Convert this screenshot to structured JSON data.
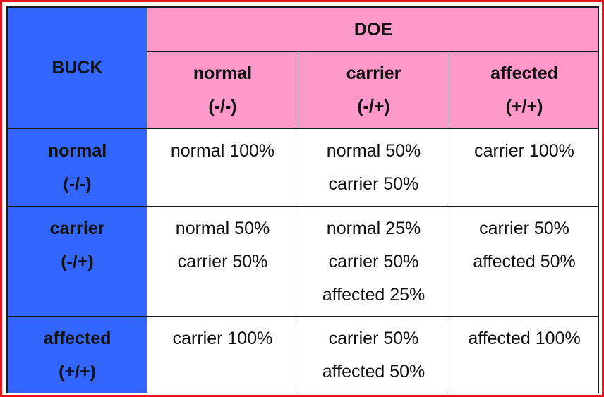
{
  "table": {
    "row_header_title": "BUCK",
    "column_header_title": "DOE",
    "columns": [
      {
        "name": "normal",
        "genotype": "(-/-)"
      },
      {
        "name": "carrier",
        "genotype": "(-/+)"
      },
      {
        "name": "affected",
        "genotype": "(+/+)"
      }
    ],
    "rows": [
      {
        "name": "normal",
        "genotype": "(-/-)",
        "cells": [
          [
            "normal 100%"
          ],
          [
            "normal 50%",
            "carrier 50%"
          ],
          [
            "carrier 100%"
          ]
        ]
      },
      {
        "name": "carrier",
        "genotype": "(-/+)",
        "cells": [
          [
            "normal 50%",
            "carrier 50%"
          ],
          [
            "normal 25%",
            "carrier 50%",
            "affected 25%"
          ],
          [
            "carrier 50%",
            "affected 50%"
          ]
        ]
      },
      {
        "name": "affected",
        "genotype": "(+/+)",
        "cells": [
          [
            "carrier 100%"
          ],
          [
            "carrier 50%",
            "affected 50%"
          ],
          [
            "affected 100%"
          ]
        ]
      }
    ]
  },
  "colors": {
    "buck_blue": "#3366ff",
    "doe_pink": "#ff99c9",
    "frame_red": "#e8141b"
  }
}
